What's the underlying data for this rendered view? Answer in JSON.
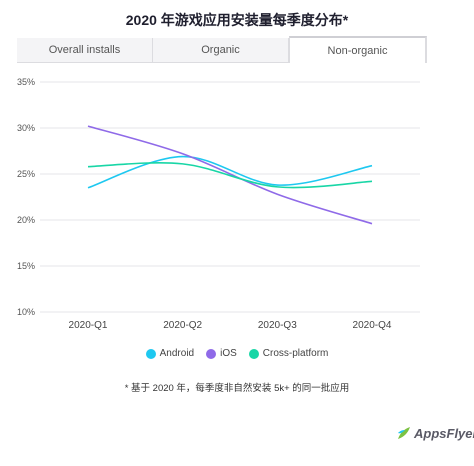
{
  "title": "2020 年游戏应用安装量每季度分布*",
  "tabs": [
    {
      "label": "Overall installs",
      "active": false
    },
    {
      "label": "Organic",
      "active": false
    },
    {
      "label": "Non-organic",
      "active": true
    }
  ],
  "footnote": "* 基于 2020 年，每季度非自然安装 5k+ 的同一批应用",
  "logo": {
    "text": "AppsFlyer",
    "icon": "appsflyer-leaf-icon"
  },
  "colors": {
    "android": "#1ec8f0",
    "ios": "#8f6ae8",
    "cross": "#18d6a6",
    "grid": "#e6e6ea"
  },
  "chart_data": {
    "type": "line",
    "categories": [
      "2020-Q1",
      "2020-Q2",
      "2020-Q3",
      "2020-Q4"
    ],
    "ylim": [
      10,
      35
    ],
    "yticks": [
      10,
      15,
      20,
      25,
      30,
      35
    ],
    "ytick_labels": [
      "10%",
      "15%",
      "20%",
      "25%",
      "30%",
      "35%"
    ],
    "grid": true,
    "legend": "bottom",
    "series": [
      {
        "name": "Android",
        "values": [
          23.5,
          26.9,
          23.8,
          25.9
        ],
        "color": "#1ec8f0"
      },
      {
        "name": "iOS",
        "values": [
          30.2,
          27.2,
          22.8,
          19.6
        ],
        "color": "#8f6ae8"
      },
      {
        "name": "Cross-platform",
        "values": [
          25.8,
          26.1,
          23.6,
          24.2
        ],
        "color": "#18d6a6"
      }
    ]
  }
}
